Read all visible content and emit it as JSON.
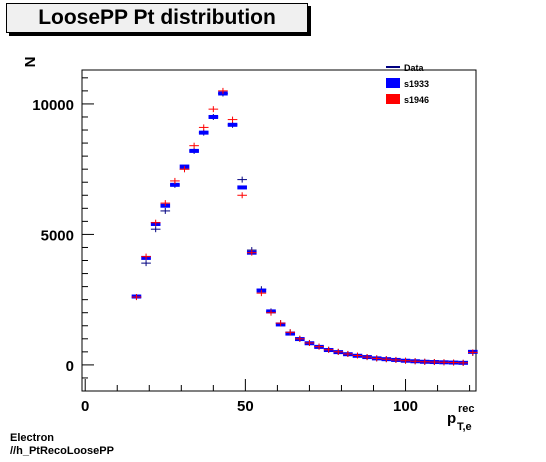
{
  "chart_data": {
    "type": "scatter",
    "title": "LoosePP Pt distribution",
    "ylabel": "N",
    "xlabel": "p",
    "xlabel_sup": "rec",
    "xlabel_sub": "T,e",
    "xlim": [
      -1,
      122
    ],
    "ylim": [
      -1000,
      11300
    ],
    "x_ticks": [
      0,
      50,
      100
    ],
    "y_ticks": [
      0,
      5000,
      10000
    ],
    "grid": false,
    "legend_position": "top-right",
    "legend": [
      {
        "label": "Data",
        "color": "#000080",
        "style": "line"
      },
      {
        "label": "s1933",
        "color": "#0000ff",
        "style": "box"
      },
      {
        "label": "s1946",
        "color": "#ff0000",
        "style": "box"
      }
    ],
    "colors": {
      "data": "#000080",
      "s1933": "#0000ff",
      "s1946": "#ff0000"
    },
    "series": [
      {
        "key": "data",
        "x": [
          16,
          19,
          22,
          25,
          28,
          31,
          34,
          37,
          40,
          43,
          46,
          49,
          52,
          55,
          58,
          61,
          64,
          67,
          70,
          73,
          76,
          79,
          82,
          85,
          88,
          91,
          94,
          97,
          100,
          103,
          106,
          109,
          112,
          115,
          118,
          121
        ],
        "values": [
          2600,
          3900,
          5200,
          5900,
          6900,
          7500,
          8200,
          8900,
          9500,
          10400,
          9200,
          7100,
          4400,
          2900,
          2050,
          1600,
          1250,
          1000,
          840,
          700,
          580,
          500,
          420,
          360,
          300,
          250,
          220,
          190,
          160,
          140,
          120,
          110,
          100,
          90,
          80,
          460
        ]
      },
      {
        "key": "s1933",
        "x": [
          16,
          19,
          22,
          25,
          28,
          31,
          34,
          37,
          40,
          43,
          46,
          49,
          52,
          55,
          58,
          61,
          64,
          67,
          70,
          73,
          76,
          79,
          82,
          85,
          88,
          91,
          94,
          97,
          100,
          103,
          106,
          109,
          112,
          115,
          118,
          121
        ],
        "values": [
          2620,
          4100,
          5400,
          6100,
          6900,
          7600,
          8200,
          8900,
          9500,
          10400,
          9200,
          6800,
          4300,
          2850,
          2050,
          1550,
          1200,
          990,
          830,
          690,
          570,
          490,
          410,
          350,
          300,
          250,
          220,
          190,
          160,
          140,
          120,
          110,
          100,
          90,
          80,
          500
        ]
      },
      {
        "key": "s1946",
        "x": [
          16,
          19,
          22,
          25,
          28,
          31,
          34,
          37,
          40,
          43,
          46,
          49,
          52,
          55,
          58,
          61,
          64,
          67,
          70,
          73,
          76,
          79,
          82,
          85,
          88,
          91,
          94,
          97,
          100,
          103,
          106,
          109,
          112,
          115,
          118,
          121
        ],
        "values": [
          2600,
          4150,
          5450,
          6200,
          7050,
          7500,
          8400,
          9100,
          9800,
          10500,
          9400,
          6500,
          4300,
          2750,
          2000,
          1600,
          1250,
          1000,
          840,
          700,
          580,
          500,
          420,
          360,
          300,
          250,
          220,
          190,
          160,
          140,
          120,
          110,
          100,
          90,
          80,
          480
        ]
      }
    ]
  },
  "footer": {
    "line1": "Electron",
    "line2": "//h_PtRecoLoosePP"
  }
}
